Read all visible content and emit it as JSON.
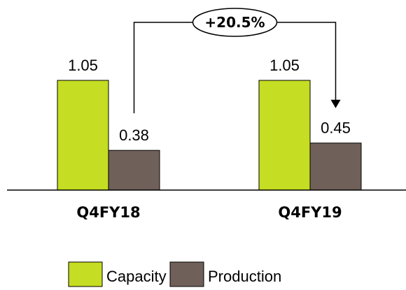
{
  "chart_data": {
    "type": "bar",
    "categories": [
      "Q4FY18",
      "Q4FY19"
    ],
    "series": [
      {
        "name": "Capacity",
        "values": [
          1.05,
          1.05
        ],
        "color": "#c5dd22"
      },
      {
        "name": "Production",
        "values": [
          0.38,
          0.45
        ],
        "color": "#6f6059"
      }
    ],
    "data_labels": [
      "1.05",
      "0.38",
      "1.05",
      "0.45"
    ],
    "annotation": {
      "text": "+20.5%",
      "from_series": "Production",
      "from_category": "Q4FY18",
      "to_category": "Q4FY19"
    },
    "ylim": [
      0,
      1.4
    ],
    "grid": false,
    "legend": "bottom-center"
  }
}
